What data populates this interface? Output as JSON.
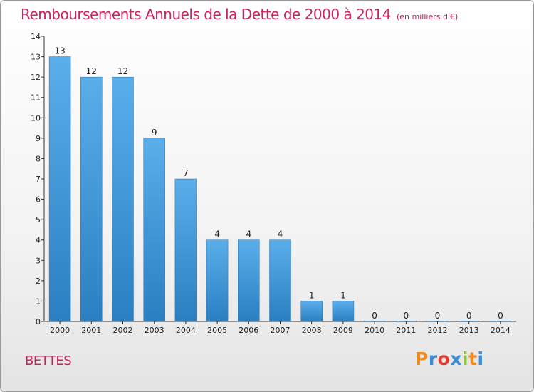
{
  "header": {
    "title": "Remboursements Annuels de la Dette de 2000 à 2014",
    "unit": "(en milliers d'€)"
  },
  "footer": {
    "commune": "BETTES",
    "logo_letters": [
      "P",
      "r",
      "o",
      "x",
      "i",
      "t",
      "i"
    ]
  },
  "colors": {
    "title": "#c8245f",
    "bar_top": "#5aaeea",
    "bar_bottom": "#2a7fc2",
    "axis": "#333333"
  },
  "chart_data": {
    "type": "bar",
    "title": "Remboursements Annuels de la Dette de 2000 à 2014",
    "xlabel": "",
    "ylabel": "",
    "categories": [
      "2000",
      "2001",
      "2002",
      "2003",
      "2004",
      "2005",
      "2006",
      "2007",
      "2008",
      "2009",
      "2010",
      "2011",
      "2012",
      "2013",
      "2014"
    ],
    "values": [
      13,
      12,
      12,
      9,
      7,
      4,
      4,
      4,
      1,
      1,
      0,
      0,
      0,
      0,
      0
    ],
    "ylim": [
      0,
      14
    ],
    "yticks": [
      "0",
      "1",
      "2",
      "3",
      "4",
      "5",
      "6",
      "7",
      "8",
      "9",
      "10",
      "11",
      "12",
      "13",
      "14"
    ],
    "grid": false,
    "data_labels": true
  }
}
